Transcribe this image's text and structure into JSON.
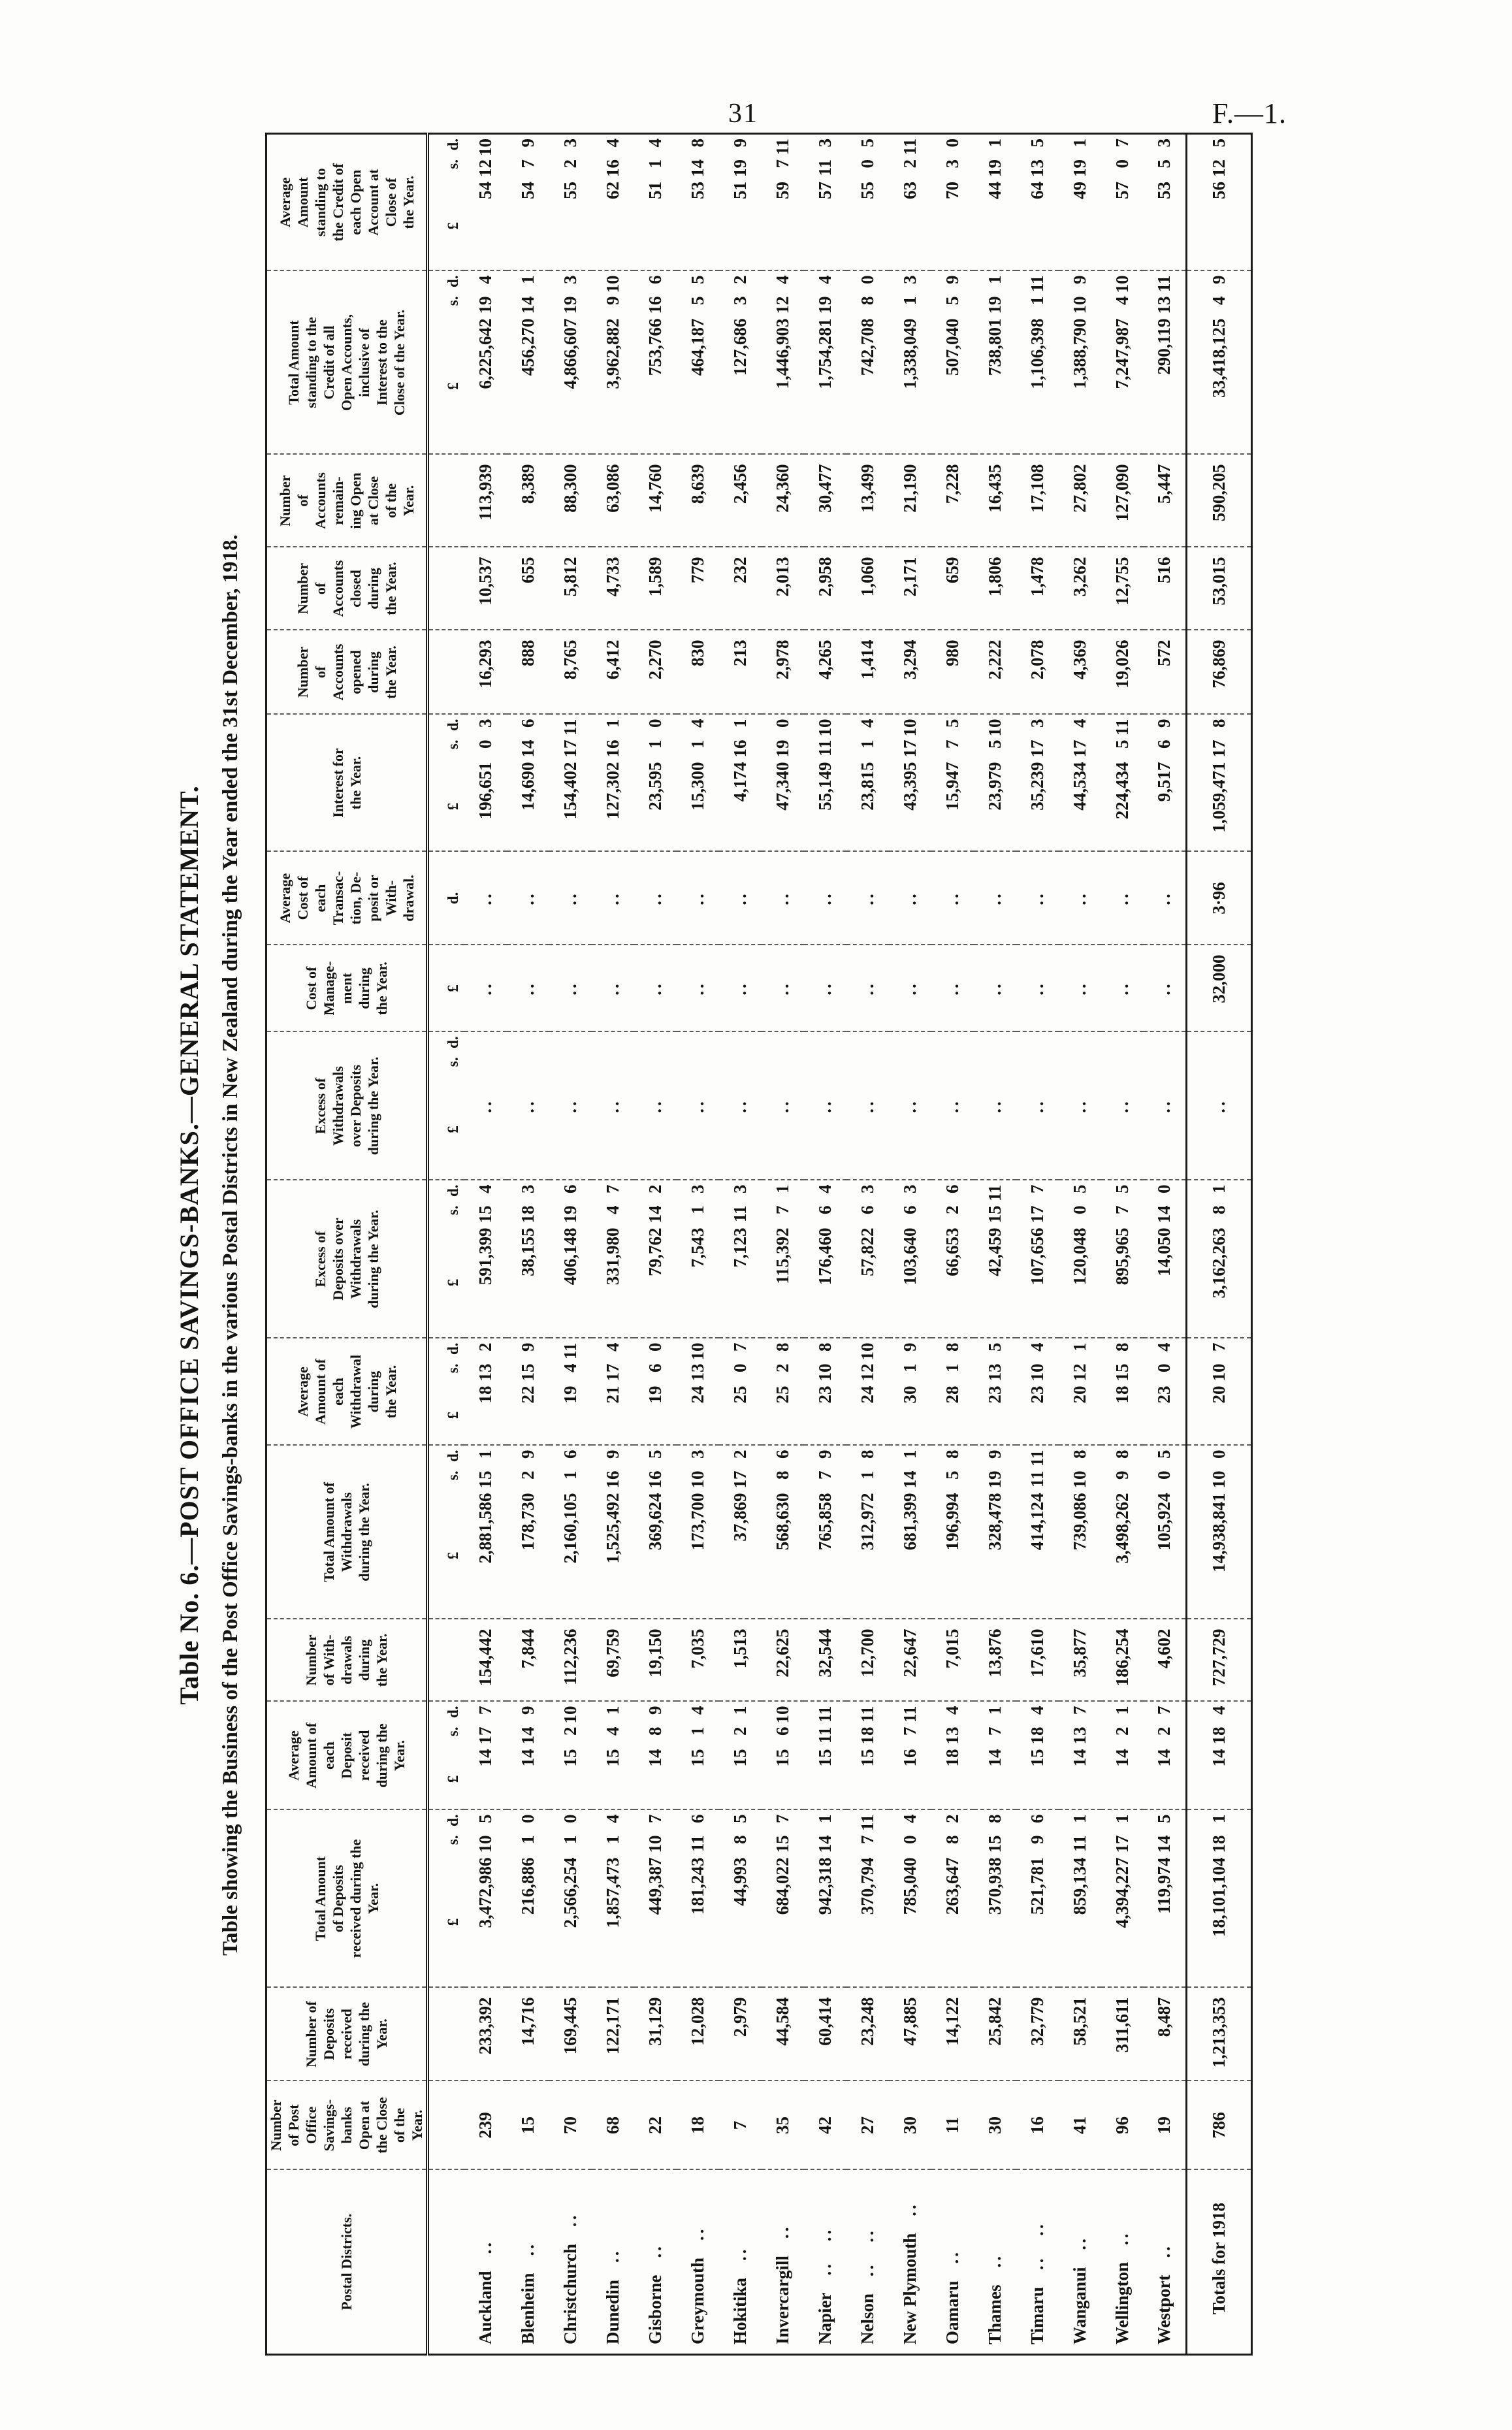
{
  "page": {
    "number": "31",
    "doc_ref": "F.—1."
  },
  "table": {
    "title_line1": "Table No. 6.—POST OFFICE SAVINGS-BANKS.—GENERAL STATEMENT.",
    "title_line2": "Table showing the Business of the Post Office Savings-banks in the various Postal Districts in New Zealand during the Year ended the 31st December, 1918.",
    "columns": [
      {
        "id": "district",
        "label": "Postal Districts.",
        "unit": ""
      },
      {
        "id": "banks-open",
        "label": "Number\nof Post\nOffice\nSavings-\nbanks\nOpen at\nthe Close\nof the\nYear.",
        "unit": ""
      },
      {
        "id": "deposits-count",
        "label": "Number of\nDeposits\nreceived\nduring the\nYear.",
        "unit": ""
      },
      {
        "id": "deposits-total",
        "label": "Total Amount\nof Deposits\nreceived during the\nYear.",
        "unit": "£ s. d."
      },
      {
        "id": "deposit-average",
        "label": "Average\nAmount of\neach\nDeposit\nreceived\nduring the\nYear.",
        "unit": "£ s. d."
      },
      {
        "id": "withdrawals-count",
        "label": "Number\nof With-\ndrawals\nduring\nthe Year.",
        "unit": ""
      },
      {
        "id": "withdrawals-total",
        "label": "Total Amount of\nWithdrawals\nduring the Year.",
        "unit": "£ s. d."
      },
      {
        "id": "withdrawal-average",
        "label": "Average\nAmount of\neach\nWithdrawal\nduring\nthe Year.",
        "unit": "£ s. d."
      },
      {
        "id": "excess-deposits",
        "label": "Excess of\nDeposits over\nWithdrawals\nduring the Year.",
        "unit": "£ s. d."
      },
      {
        "id": "excess-withdrawals",
        "label": "Excess of\nWithdrawals\nover Deposits\nduring the Year.",
        "unit": "£ s. d."
      },
      {
        "id": "cost-management",
        "label": "Cost of\nManage-\nment\nduring\nthe Year.",
        "unit": "£"
      },
      {
        "id": "avg-cost-transaction",
        "label": "Average\nCost of\neach\nTransac-\ntion, De-\nposit or\nWith-\ndrawal.",
        "unit": "d."
      },
      {
        "id": "interest",
        "label": "Interest for\nthe Year.",
        "unit": "£ s. d."
      },
      {
        "id": "accounts-opened",
        "label": "Number\nof\nAccounts\nopened\nduring\nthe Year.",
        "unit": ""
      },
      {
        "id": "accounts-closed",
        "label": "Number\nof\nAccounts\nclosed\nduring\nthe Year.",
        "unit": ""
      },
      {
        "id": "accounts-remaining",
        "label": "Number\nof\nAccounts\nremain-\ning Open\nat Close\nof the\nYear.",
        "unit": ""
      },
      {
        "id": "credit-total",
        "label": "Total Amount\nstanding to the\nCredit of all\nOpen Accounts,\ninclusive of\nInterest to the\nClose of the Year.",
        "unit": "£ s. d."
      },
      {
        "id": "credit-average",
        "label": "Average\nAmount\nstanding to\nthe Credit of\neach Open\nAccount at\nClose of\nthe Year.",
        "unit": "£ s. d."
      }
    ],
    "rows": [
      {
        "name": "Auckland",
        "leader": "..",
        "cells": [
          "239",
          "233,392",
          "3,472,986 10 5",
          "14 17 7",
          "154,442",
          "2,881,586 15 1",
          "18 13 2",
          "591,399 15 4",
          "..",
          "..",
          "..",
          "196,651 0 3",
          "16,293",
          "10,537",
          "113,939",
          "6,225,642 19 4",
          "54 12 10"
        ]
      },
      {
        "name": "Blenheim",
        "leader": "..",
        "cells": [
          "15",
          "14,716",
          "216,886 1 0",
          "14 14 9",
          "7,844",
          "178,730 2 9",
          "22 15 9",
          "38,155 18 3",
          "..",
          "..",
          "..",
          "14,690 14 6",
          "888",
          "655",
          "8,389",
          "456,270 14 1",
          "54 7 9"
        ]
      },
      {
        "name": "Christchurch",
        "leader": "..",
        "cells": [
          "70",
          "169,445",
          "2,566,254 1 0",
          "15 2 10",
          "112,236",
          "2,160,105 1 6",
          "19 4 11",
          "406,148 19 6",
          "..",
          "..",
          "..",
          "154,402 17 11",
          "8,765",
          "5,812",
          "88,300",
          "4,866,607 19 3",
          "55 2 3"
        ]
      },
      {
        "name": "Dunedin",
        "leader": "..",
        "cells": [
          "68",
          "122,171",
          "1,857,473 1 4",
          "15 4 1",
          "69,759",
          "1,525,492 16 9",
          "21 17 4",
          "331,980 4 7",
          "..",
          "..",
          "..",
          "127,302 16 1",
          "6,412",
          "4,733",
          "63,086",
          "3,962,882 9 10",
          "62 16 4"
        ]
      },
      {
        "name": "Gisborne",
        "leader": "..",
        "cells": [
          "22",
          "31,129",
          "449,387 10 7",
          "14 8 9",
          "19,150",
          "369,624 16 5",
          "19 6 0",
          "79,762 14 2",
          "..",
          "..",
          "..",
          "23,595 1 0",
          "2,270",
          "1,589",
          "14,760",
          "753,766 16 6",
          "51 1 4"
        ]
      },
      {
        "name": "Greymouth",
        "leader": "..",
        "cells": [
          "18",
          "12,028",
          "181,243 11 6",
          "15 1 4",
          "7,035",
          "173,700 10 3",
          "24 13 10",
          "7,543 1 3",
          "..",
          "..",
          "..",
          "15,300 1 4",
          "830",
          "779",
          "8,639",
          "464,187 5 5",
          "53 14 8"
        ]
      },
      {
        "name": "Hokitika",
        "leader": "..",
        "cells": [
          "7",
          "2,979",
          "44,993 8 5",
          "15 2 1",
          "1,513",
          "37,869 17 2",
          "25 0 7",
          "7,123 11 3",
          "..",
          "..",
          "..",
          "4,174 16 1",
          "213",
          "232",
          "2,456",
          "127,686 3 2",
          "51 19 9"
        ]
      },
      {
        "name": "Invercargill",
        "leader": "..",
        "cells": [
          "35",
          "44,584",
          "684,022 15 7",
          "15 6 10",
          "22,625",
          "568,630 8 6",
          "25 2 8",
          "115,392 7 1",
          "..",
          "..",
          "..",
          "47,340 19 0",
          "2,978",
          "2,013",
          "24,360",
          "1,446,903 12 4",
          "59 7 11"
        ]
      },
      {
        "name": "Napier",
        "leader": ".. ..",
        "cells": [
          "42",
          "60,414",
          "942,318 14 1",
          "15 11 11",
          "32,544",
          "765,858 7 9",
          "23 10 8",
          "176,460 6 4",
          "..",
          "..",
          "..",
          "55,149 11 10",
          "4,265",
          "2,958",
          "30,477",
          "1,754,281 19 4",
          "57 11 3"
        ]
      },
      {
        "name": "Nelson",
        "leader": ".. ..",
        "cells": [
          "27",
          "23,248",
          "370,794 7 11",
          "15 18 11",
          "12,700",
          "312,972 1 8",
          "24 12 10",
          "57,822 6 3",
          "..",
          "..",
          "..",
          "23,815 1 4",
          "1,414",
          "1,060",
          "13,499",
          "742,708 8 0",
          "55 0 5"
        ]
      },
      {
        "name": "New Plymouth",
        "leader": "..",
        "cells": [
          "30",
          "47,885",
          "785,040 0 4",
          "16 7 11",
          "22,647",
          "681,399 14 1",
          "30 1 9",
          "103,640 6 3",
          "..",
          "..",
          "..",
          "43,395 17 10",
          "3,294",
          "2,171",
          "21,190",
          "1,338,049 1 3",
          "63 2 11"
        ]
      },
      {
        "name": "Oamaru",
        "leader": "..",
        "cells": [
          "11",
          "14,122",
          "263,647 8 2",
          "18 13 4",
          "7,015",
          "196,994 5 8",
          "28 1 8",
          "66,653 2 6",
          "..",
          "..",
          "..",
          "15,947 7 5",
          "980",
          "659",
          "7,228",
          "507,040 5 9",
          "70 3 0"
        ]
      },
      {
        "name": "Thames",
        "leader": "..",
        "cells": [
          "30",
          "25,842",
          "370,938 15 8",
          "14 7 1",
          "13,876",
          "328,478 19 9",
          "23 13 5",
          "42,459 15 11",
          "..",
          "..",
          "..",
          "23,979 5 10",
          "2,222",
          "1,806",
          "16,435",
          "738,801 19 1",
          "44 19 1"
        ]
      },
      {
        "name": "Timaru",
        "leader": ".. ..",
        "cells": [
          "16",
          "32,779",
          "521,781 9 6",
          "15 18 4",
          "17,610",
          "414,124 11 11",
          "23 10 4",
          "107,656 17 7",
          "..",
          "..",
          "..",
          "35,239 17 3",
          "2,078",
          "1,478",
          "17,108",
          "1,106,398 1 11",
          "64 13 5"
        ]
      },
      {
        "name": "Wanganui",
        "leader": "..",
        "cells": [
          "41",
          "58,521",
          "859,134 11 1",
          "14 13 7",
          "35,877",
          "739,086 10 8",
          "20 12 1",
          "120,048 0 5",
          "..",
          "..",
          "..",
          "44,534 17 4",
          "4,369",
          "3,262",
          "27,802",
          "1,388,790 10 9",
          "49 19 1"
        ]
      },
      {
        "name": "Wellington",
        "leader": "..",
        "cells": [
          "96",
          "311,611",
          "4,394,227 17 1",
          "14 2 1",
          "186,254",
          "3,498,262 9 8",
          "18 15 8",
          "895,965 7 5",
          "..",
          "..",
          "..",
          "224,434 5 11",
          "19,026",
          "12,755",
          "127,090",
          "7,247,987 4 10",
          "57 0 7"
        ]
      },
      {
        "name": "Westport",
        "leader": "..",
        "cells": [
          "19",
          "8,487",
          "119,974 14 5",
          "14 2 7",
          "4,602",
          "105,924 0 5",
          "23 0 4",
          "14,050 14 0",
          "..",
          "..",
          "..",
          "9,517 6 9",
          "572",
          "516",
          "5,447",
          "290,119 13 11",
          "53 5 3"
        ]
      },
      {
        "name": "Totals for 1918",
        "leader": "",
        "cells": [
          "786",
          "1,213,353",
          "18,101,104 18 1",
          "14 18 4",
          "727,729",
          "14,938,841 10 0",
          "20 10 7",
          "3,162,263 8 1",
          "..",
          "32,000",
          "3·96",
          "1,059,471 17 8",
          "76,869",
          "53,015",
          "590,205",
          "33,418,125 4 9",
          "56 12 5"
        ]
      }
    ]
  }
}
